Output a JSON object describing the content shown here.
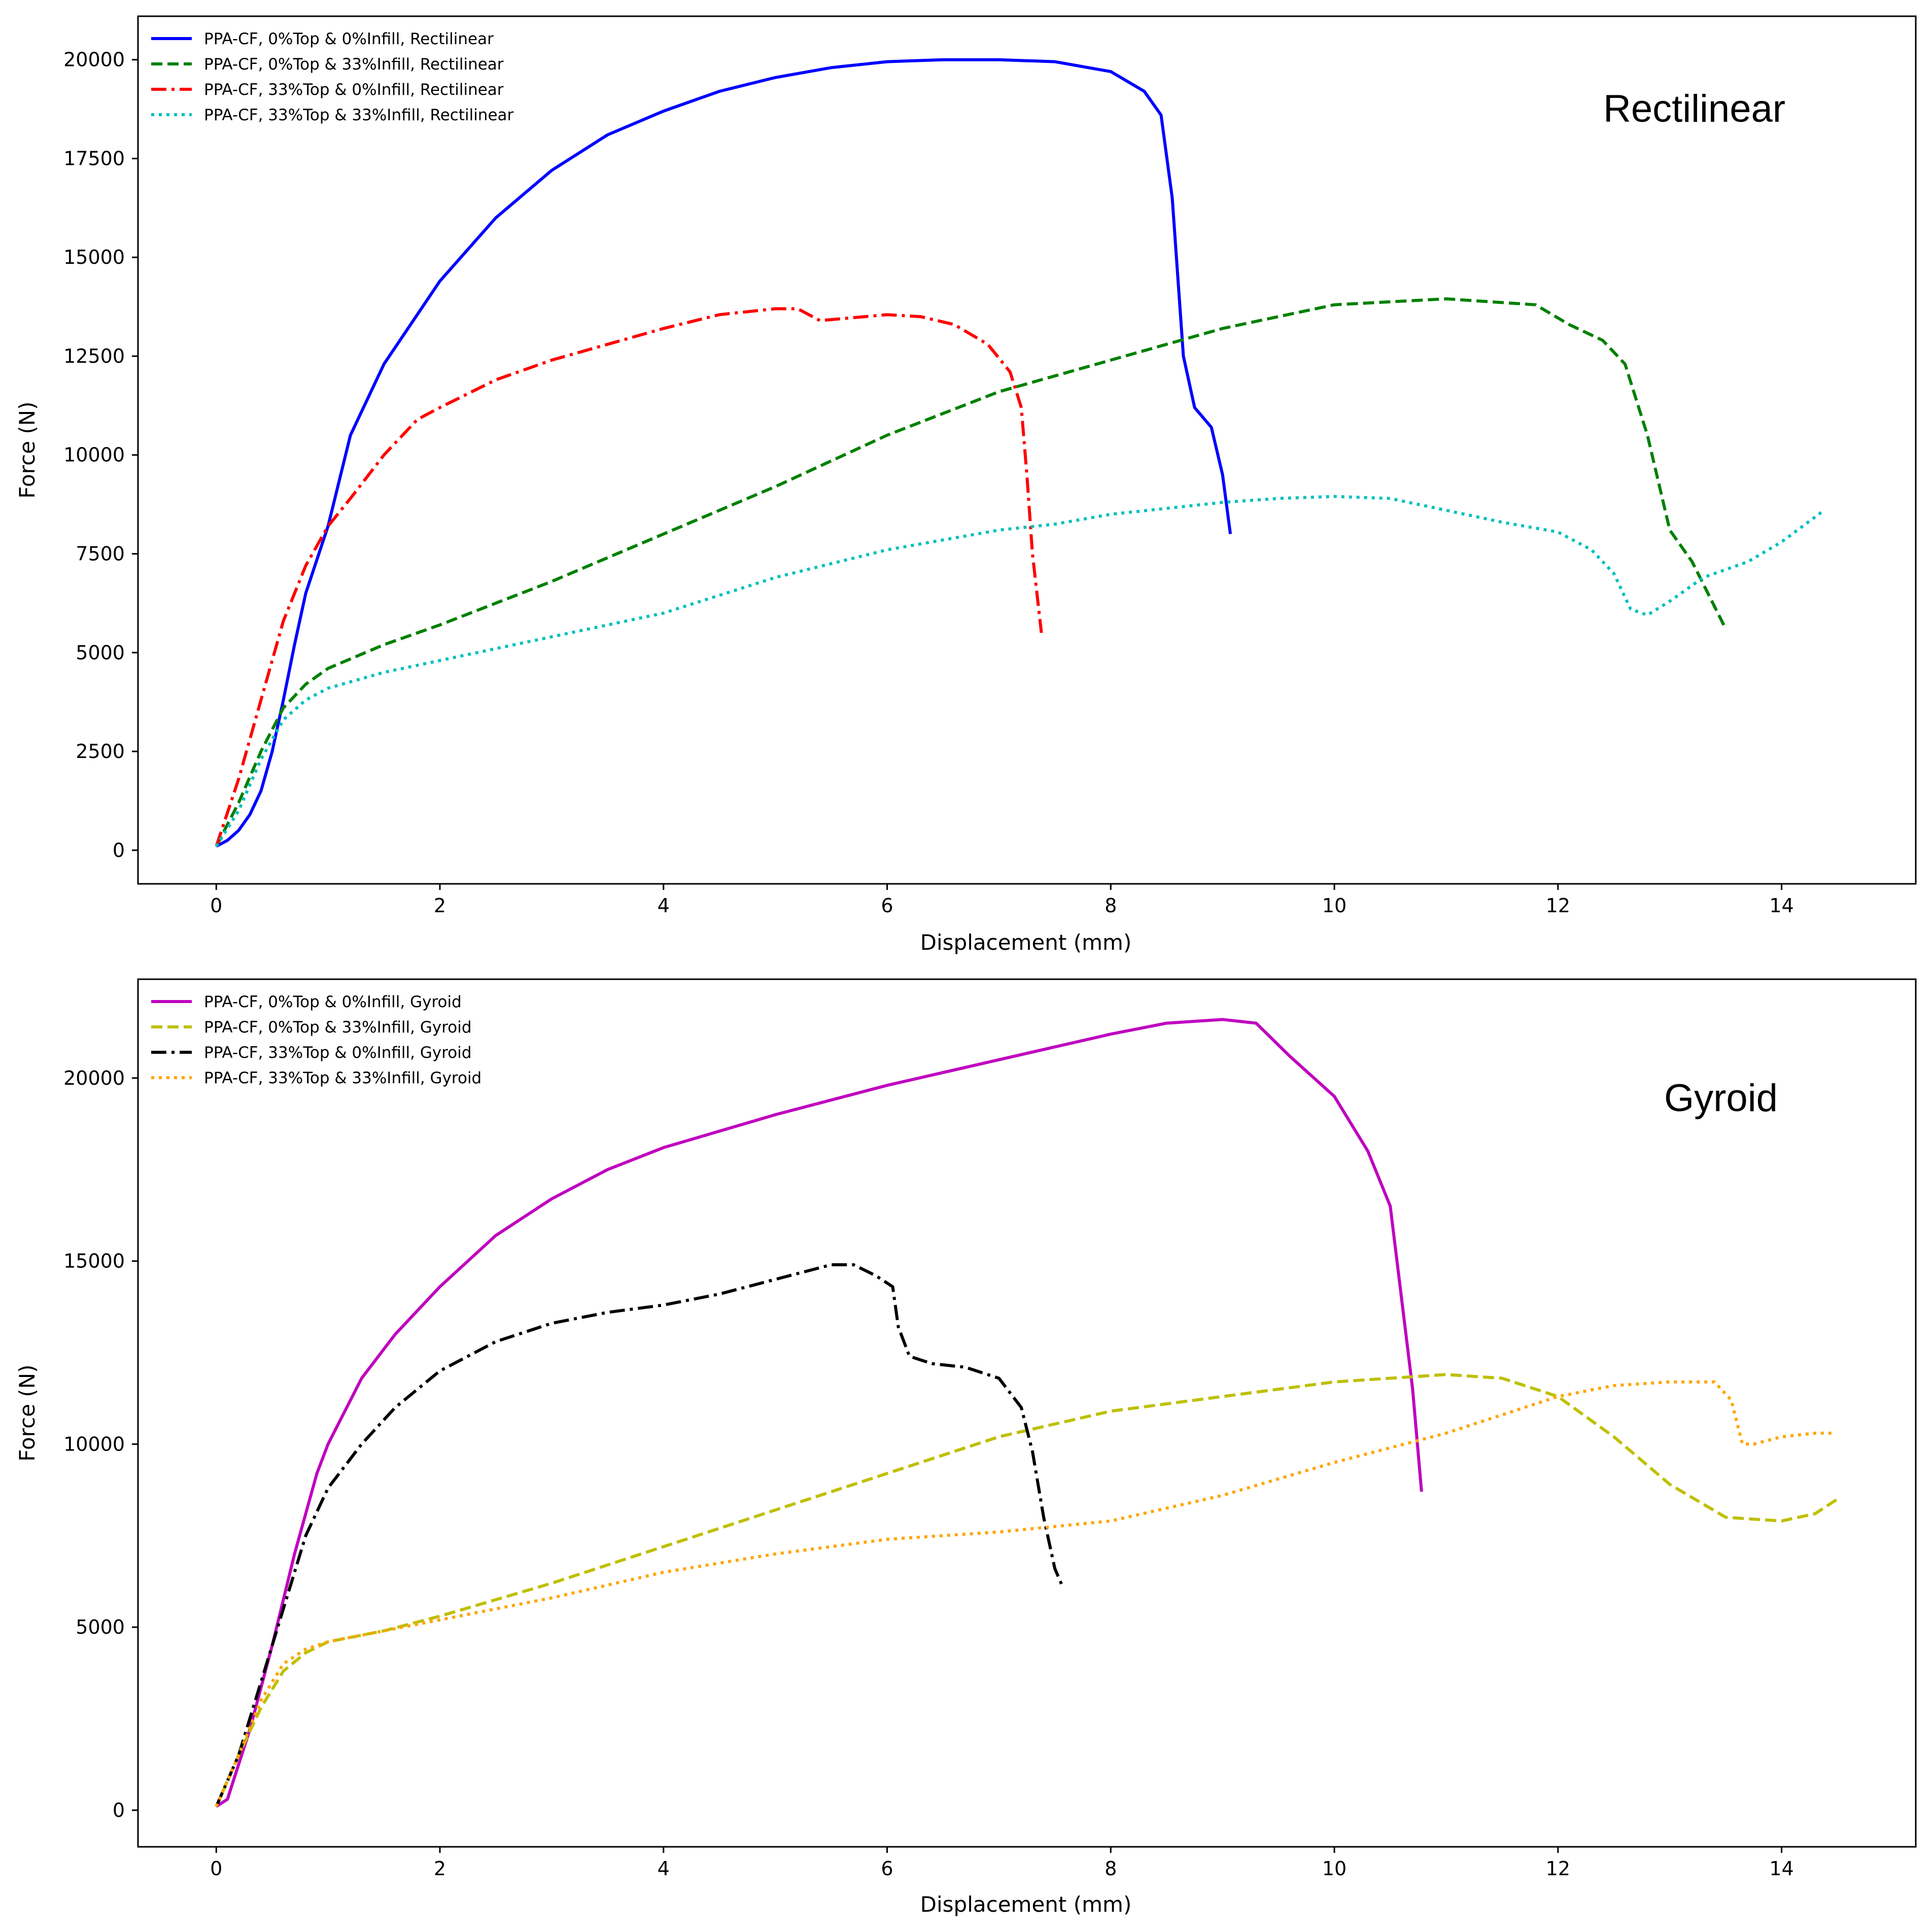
{
  "chart_data": [
    {
      "type": "line",
      "title": "Rectilinear",
      "xlabel": "Displacement (mm)",
      "ylabel": "Force (N)",
      "xlim": [
        -0.7,
        15.2
      ],
      "ylim": [
        -850,
        21100
      ],
      "xticks": [
        0,
        2,
        4,
        6,
        8,
        10,
        12,
        14
      ],
      "yticks": [
        0,
        2500,
        5000,
        7500,
        10000,
        12500,
        15000,
        17500,
        20000
      ],
      "xtick_labels": [
        "0",
        "2",
        "4",
        "6",
        "8",
        "10",
        "12",
        "14"
      ],
      "ytick_labels": [
        "0",
        "2500",
        "5000",
        "7500",
        "10000",
        "12500",
        "15000",
        "17500",
        "20000"
      ],
      "legend_position": "upper-left",
      "series": [
        {
          "name": "PPA-CF, 0%Top & 0%Infill, Rectilinear",
          "color": "#0000ff",
          "dash": "solid",
          "x": [
            0,
            0.1,
            0.2,
            0.3,
            0.4,
            0.5,
            0.6,
            0.7,
            0.8,
            1.0,
            1.2,
            1.5,
            2.0,
            2.5,
            3.0,
            3.5,
            4.0,
            4.5,
            5.0,
            5.5,
            6.0,
            6.5,
            7.0,
            7.5,
            8.0,
            8.3,
            8.45,
            8.55,
            8.6,
            8.65,
            8.75,
            8.9,
            9.0,
            9.07
          ],
          "y": [
            100,
            250,
            500,
            900,
            1500,
            2500,
            3800,
            5200,
            6500,
            8200,
            10500,
            12300,
            14400,
            16000,
            17200,
            18100,
            18700,
            19200,
            19550,
            19800,
            19950,
            20000,
            20000,
            19950,
            19700,
            19200,
            18600,
            16500,
            14500,
            12500,
            11200,
            10700,
            9500,
            8000
          ]
        },
        {
          "name": "PPA-CF, 0%Top & 33%Infill, Rectilinear",
          "color": "#008000",
          "dash": "dashed",
          "x": [
            0,
            0.2,
            0.4,
            0.6,
            0.8,
            1.0,
            1.5,
            2.0,
            3.0,
            4.0,
            5.0,
            6.0,
            7.0,
            8.0,
            9.0,
            10.0,
            11.0,
            11.8,
            12.1,
            12.4,
            12.6,
            12.8,
            13.0,
            13.2,
            13.5
          ],
          "y": [
            100,
            1200,
            2500,
            3600,
            4200,
            4600,
            5200,
            5700,
            6800,
            8000,
            9200,
            10500,
            11600,
            12400,
            13200,
            13800,
            13950,
            13800,
            13300,
            12900,
            12300,
            10500,
            8100,
            7300,
            5600
          ]
        },
        {
          "name": "PPA-CF, 33%Top & 0%Infill, Rectilinear",
          "color": "#ff0000",
          "dash": "dashdot",
          "x": [
            0,
            0.2,
            0.4,
            0.6,
            0.8,
            1.0,
            1.2,
            1.5,
            1.8,
            2.0,
            2.5,
            3.0,
            3.5,
            4.0,
            4.5,
            5.0,
            5.2,
            5.4,
            5.6,
            6.0,
            6.3,
            6.6,
            6.9,
            7.1,
            7.2,
            7.25,
            7.3,
            7.38
          ],
          "y": [
            100,
            1800,
            3800,
            5800,
            7200,
            8200,
            8900,
            10000,
            10900,
            11200,
            11900,
            12400,
            12800,
            13200,
            13550,
            13700,
            13700,
            13400,
            13450,
            13550,
            13500,
            13300,
            12800,
            12100,
            11200,
            9500,
            7500,
            5500
          ]
        },
        {
          "name": "PPA-CF, 33%Top & 33%Infill, Rectilinear",
          "color": "#00bfbf",
          "dash": "dotted",
          "x": [
            0,
            0.2,
            0.4,
            0.6,
            0.8,
            1.0,
            1.5,
            2.0,
            3.0,
            4.0,
            5.0,
            6.0,
            7.0,
            7.5,
            8.0,
            8.5,
            9.0,
            9.5,
            10.0,
            10.5,
            11.0,
            11.5,
            12.0,
            12.3,
            12.5,
            12.65,
            12.8,
            13.0,
            13.3,
            13.7,
            14.0,
            14.38
          ],
          "y": [
            100,
            1000,
            2300,
            3300,
            3800,
            4100,
            4500,
            4800,
            5400,
            6000,
            6900,
            7600,
            8100,
            8250,
            8500,
            8650,
            8800,
            8900,
            8950,
            8900,
            8600,
            8300,
            8050,
            7600,
            7000,
            6100,
            5950,
            6300,
            6900,
            7300,
            7800,
            8600
          ]
        }
      ]
    },
    {
      "type": "line",
      "title": "Gyroid",
      "xlabel": "Displacement (mm)",
      "ylabel": "Force (N)",
      "xlim": [
        -0.7,
        15.2
      ],
      "ylim": [
        -1000,
        22700
      ],
      "xticks": [
        0,
        2,
        4,
        6,
        8,
        10,
        12,
        14
      ],
      "yticks": [
        0,
        5000,
        10000,
        15000,
        20000
      ],
      "xtick_labels": [
        "0",
        "2",
        "4",
        "6",
        "8",
        "10",
        "12",
        "14"
      ],
      "ytick_labels": [
        "0",
        "5000",
        "10000",
        "15000",
        "20000"
      ],
      "legend_position": "upper-left",
      "series": [
        {
          "name": "PPA-CF, 0%Top & 0%Infill, Gyroid",
          "color": "#bf00bf",
          "dash": "solid",
          "x": [
            0,
            0.1,
            0.3,
            0.5,
            0.7,
            0.9,
            1.0,
            1.3,
            1.6,
            2.0,
            2.5,
            3.0,
            3.5,
            4.0,
            5.0,
            6.0,
            7.0,
            8.0,
            8.5,
            9.0,
            9.3,
            9.4,
            9.6,
            10.0,
            10.3,
            10.5,
            10.6,
            10.7,
            10.78
          ],
          "y": [
            100,
            300,
            2200,
            4500,
            7000,
            9200,
            10000,
            11800,
            13000,
            14300,
            15700,
            16700,
            17500,
            18100,
            19000,
            19800,
            20500,
            21200,
            21500,
            21600,
            21500,
            21200,
            20600,
            19500,
            18000,
            16500,
            14000,
            11500,
            8700
          ]
        },
        {
          "name": "PPA-CF, 0%Top & 33%Infill, Gyroid",
          "color": "#bfbf00",
          "dash": "dashed",
          "x": [
            0,
            0.2,
            0.4,
            0.6,
            0.8,
            1.0,
            1.5,
            2.0,
            3.0,
            4.0,
            5.0,
            6.0,
            7.0,
            8.0,
            9.0,
            10.0,
            11.0,
            11.5,
            12.0,
            12.5,
            13.0,
            13.5,
            14.0,
            14.3,
            14.5
          ],
          "y": [
            100,
            1500,
            2800,
            3800,
            4300,
            4600,
            4900,
            5300,
            6200,
            7200,
            8200,
            9200,
            10200,
            10900,
            11300,
            11700,
            11900,
            11800,
            11300,
            10200,
            8900,
            8000,
            7900,
            8100,
            8500
          ]
        },
        {
          "name": "PPA-CF, 33%Top & 0%Infill, Gyroid",
          "color": "#000000",
          "dash": "dashdot",
          "x": [
            0,
            0.2,
            0.4,
            0.6,
            0.8,
            1.0,
            1.3,
            1.6,
            2.0,
            2.5,
            3.0,
            3.5,
            4.0,
            4.5,
            5.0,
            5.5,
            5.7,
            5.9,
            6.05,
            6.1,
            6.2,
            6.4,
            6.7,
            7.0,
            7.2,
            7.3,
            7.4,
            7.5,
            7.57
          ],
          "y": [
            100,
            1500,
            3500,
            5500,
            7500,
            8800,
            10000,
            11000,
            12000,
            12800,
            13300,
            13600,
            13800,
            14100,
            14500,
            14900,
            14900,
            14600,
            14300,
            13200,
            12400,
            12200,
            12100,
            11800,
            11000,
            9800,
            8000,
            6600,
            6100
          ]
        },
        {
          "name": "PPA-CF, 33%Top & 33%Infill, Gyroid",
          "color": "#ffa500",
          "dash": "dotted",
          "x": [
            0,
            0.2,
            0.4,
            0.6,
            0.8,
            1.0,
            1.5,
            2.0,
            3.0,
            4.0,
            5.0,
            6.0,
            7.0,
            8.0,
            9.0,
            10.0,
            11.0,
            11.5,
            12.0,
            12.5,
            13.0,
            13.4,
            13.55,
            13.65,
            13.75,
            14.0,
            14.3,
            14.45
          ],
          "y": [
            100,
            1500,
            3000,
            4000,
            4400,
            4600,
            4900,
            5200,
            5800,
            6500,
            7000,
            7400,
            7600,
            7900,
            8600,
            9500,
            10300,
            10800,
            11300,
            11600,
            11700,
            11700,
            11200,
            10000,
            10000,
            10200,
            10300,
            10300
          ]
        }
      ]
    }
  ]
}
